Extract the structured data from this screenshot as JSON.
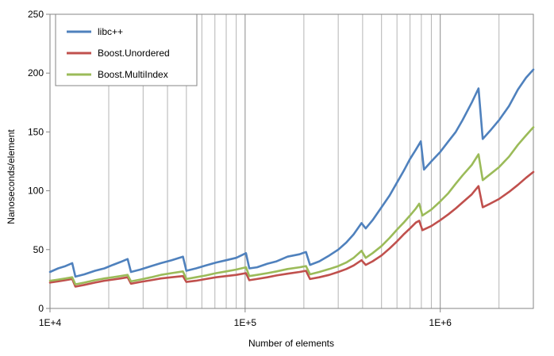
{
  "chart_data": {
    "type": "line",
    "xlabel": "Number of elements",
    "ylabel": "Nanoseconds/element",
    "x_scale": "log",
    "xlim": [
      10000,
      3000000
    ],
    "ylim": [
      0,
      250
    ],
    "x_tick_values": [
      10000,
      100000,
      1000000
    ],
    "x_tick_labels": [
      "1E+4",
      "1E+5",
      "1E+6"
    ],
    "y_ticks": [
      0,
      50,
      100,
      150,
      200,
      250
    ],
    "grid": "vertical log gridlines",
    "legend_position": "top-left",
    "series": [
      {
        "name": "libc++",
        "color": "#4F81BD",
        "points": [
          [
            10000,
            31
          ],
          [
            11000,
            34
          ],
          [
            12000,
            36
          ],
          [
            13000,
            38.5
          ],
          [
            13500,
            27
          ],
          [
            15000,
            29
          ],
          [
            17000,
            32
          ],
          [
            19000,
            34
          ],
          [
            21000,
            37
          ],
          [
            23000,
            39.5
          ],
          [
            25000,
            42
          ],
          [
            26000,
            31
          ],
          [
            29000,
            33
          ],
          [
            33000,
            36
          ],
          [
            37000,
            38.5
          ],
          [
            42000,
            41
          ],
          [
            48000,
            44
          ],
          [
            50000,
            32
          ],
          [
            56000,
            34
          ],
          [
            63000,
            36.5
          ],
          [
            71000,
            39
          ],
          [
            80000,
            41
          ],
          [
            90000,
            43
          ],
          [
            101000,
            47
          ],
          [
            105000,
            34
          ],
          [
            115000,
            35
          ],
          [
            130000,
            38
          ],
          [
            145000,
            40
          ],
          [
            165000,
            44
          ],
          [
            190000,
            46
          ],
          [
            205000,
            48
          ],
          [
            215000,
            37
          ],
          [
            240000,
            40
          ],
          [
            270000,
            45
          ],
          [
            300000,
            50
          ],
          [
            330000,
            56
          ],
          [
            360000,
            63
          ],
          [
            395000,
            72.5
          ],
          [
            415000,
            68
          ],
          [
            450000,
            75
          ],
          [
            500000,
            86
          ],
          [
            550000,
            96
          ],
          [
            600000,
            107
          ],
          [
            650000,
            117
          ],
          [
            700000,
            127
          ],
          [
            750000,
            135
          ],
          [
            795000,
            142
          ],
          [
            825000,
            118
          ],
          [
            900000,
            125
          ],
          [
            1000000,
            133
          ],
          [
            1100000,
            142
          ],
          [
            1200000,
            150
          ],
          [
            1300000,
            160
          ],
          [
            1450000,
            175
          ],
          [
            1570000,
            187
          ],
          [
            1650000,
            144
          ],
          [
            1800000,
            151
          ],
          [
            2000000,
            160
          ],
          [
            2250000,
            172
          ],
          [
            2500000,
            186
          ],
          [
            2750000,
            196
          ],
          [
            3000000,
            203
          ]
        ]
      },
      {
        "name": "Boost.Unordered",
        "color": "#C0504D",
        "points": [
          [
            10000,
            22
          ],
          [
            11000,
            23
          ],
          [
            12000,
            24
          ],
          [
            13000,
            25
          ],
          [
            13500,
            18.5
          ],
          [
            15000,
            20
          ],
          [
            17000,
            22
          ],
          [
            19000,
            23.5
          ],
          [
            21000,
            24.5
          ],
          [
            23000,
            25.5
          ],
          [
            25000,
            26.5
          ],
          [
            26000,
            21
          ],
          [
            29000,
            22.5
          ],
          [
            33000,
            24
          ],
          [
            37000,
            25.5
          ],
          [
            42000,
            26.5
          ],
          [
            48000,
            27.5
          ],
          [
            50000,
            22.5
          ],
          [
            56000,
            23.5
          ],
          [
            63000,
            25
          ],
          [
            71000,
            26.5
          ],
          [
            80000,
            27.5
          ],
          [
            90000,
            28.5
          ],
          [
            101000,
            30
          ],
          [
            105000,
            24
          ],
          [
            115000,
            25
          ],
          [
            130000,
            26.5
          ],
          [
            145000,
            28
          ],
          [
            165000,
            29.5
          ],
          [
            190000,
            31
          ],
          [
            205000,
            32
          ],
          [
            215000,
            25
          ],
          [
            240000,
            26.5
          ],
          [
            270000,
            28.5
          ],
          [
            300000,
            31
          ],
          [
            330000,
            33.5
          ],
          [
            360000,
            36.5
          ],
          [
            395000,
            41
          ],
          [
            415000,
            37
          ],
          [
            450000,
            40
          ],
          [
            500000,
            45
          ],
          [
            550000,
            51
          ],
          [
            600000,
            57
          ],
          [
            650000,
            63
          ],
          [
            700000,
            68
          ],
          [
            750000,
            73
          ],
          [
            780000,
            74.5
          ],
          [
            810000,
            66.5
          ],
          [
            900000,
            70
          ],
          [
            1000000,
            75
          ],
          [
            1100000,
            80
          ],
          [
            1200000,
            85
          ],
          [
            1300000,
            90
          ],
          [
            1450000,
            97
          ],
          [
            1570000,
            104
          ],
          [
            1650000,
            86
          ],
          [
            1800000,
            89
          ],
          [
            2000000,
            93
          ],
          [
            2250000,
            99
          ],
          [
            2500000,
            105
          ],
          [
            2750000,
            111
          ],
          [
            3000000,
            116
          ]
        ]
      },
      {
        "name": "Boost.MultiIndex",
        "color": "#9BBB59",
        "points": [
          [
            10000,
            23.5
          ],
          [
            11000,
            24.5
          ],
          [
            12000,
            25.5
          ],
          [
            13000,
            26.5
          ],
          [
            13500,
            20.5
          ],
          [
            15000,
            22
          ],
          [
            17000,
            24
          ],
          [
            19000,
            25.5
          ],
          [
            21000,
            26.5
          ],
          [
            23000,
            27.5
          ],
          [
            25000,
            28.5
          ],
          [
            26000,
            23
          ],
          [
            29000,
            24.5
          ],
          [
            33000,
            26.5
          ],
          [
            37000,
            28.5
          ],
          [
            42000,
            30
          ],
          [
            48000,
            31.5
          ],
          [
            50000,
            25
          ],
          [
            56000,
            26.5
          ],
          [
            63000,
            28
          ],
          [
            71000,
            30
          ],
          [
            80000,
            31.5
          ],
          [
            90000,
            33
          ],
          [
            101000,
            35
          ],
          [
            105000,
            27.5
          ],
          [
            115000,
            28.5
          ],
          [
            130000,
            30
          ],
          [
            145000,
            31.5
          ],
          [
            165000,
            33.5
          ],
          [
            190000,
            35
          ],
          [
            205000,
            36
          ],
          [
            215000,
            29
          ],
          [
            240000,
            31
          ],
          [
            270000,
            33.5
          ],
          [
            300000,
            36
          ],
          [
            330000,
            39
          ],
          [
            360000,
            43
          ],
          [
            395000,
            49
          ],
          [
            415000,
            43
          ],
          [
            450000,
            47
          ],
          [
            500000,
            53
          ],
          [
            550000,
            60
          ],
          [
            600000,
            67
          ],
          [
            650000,
            73
          ],
          [
            700000,
            79
          ],
          [
            750000,
            85
          ],
          [
            780000,
            89
          ],
          [
            810000,
            79
          ],
          [
            900000,
            84
          ],
          [
            1000000,
            91
          ],
          [
            1100000,
            98
          ],
          [
            1200000,
            106
          ],
          [
            1300000,
            113
          ],
          [
            1450000,
            122
          ],
          [
            1570000,
            131
          ],
          [
            1650000,
            109
          ],
          [
            1800000,
            114
          ],
          [
            2000000,
            120
          ],
          [
            2250000,
            129
          ],
          [
            2500000,
            139
          ],
          [
            2750000,
            147
          ],
          [
            3000000,
            154
          ]
        ]
      }
    ]
  }
}
